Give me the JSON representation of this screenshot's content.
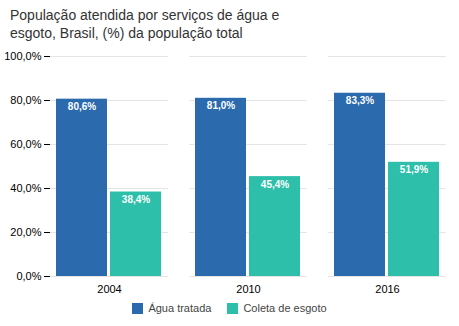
{
  "chart_data": {
    "type": "bar",
    "title": "População atendida por serviços de água e\nesgoto, Brasil, (%) da população total",
    "categories": [
      "2004",
      "2010",
      "2016"
    ],
    "series": [
      {
        "name": "Água tratada",
        "color": "#2a6aad",
        "values": [
          80.6,
          81.0,
          83.3
        ],
        "value_labels": [
          "80,6%",
          "81,0%",
          "83,3%"
        ]
      },
      {
        "name": "Coleta de esgoto",
        "color": "#2dbfaa",
        "values": [
          38.4,
          45.4,
          51.9
        ],
        "value_labels": [
          "38,4%",
          "45,4%",
          "51,9%"
        ]
      }
    ],
    "ylim": [
      0,
      100
    ],
    "yticks": [
      {
        "value": 0,
        "label": "0,0%"
      },
      {
        "value": 20,
        "label": "20,0%"
      },
      {
        "value": 40,
        "label": "40,0%"
      },
      {
        "value": 60,
        "label": "60,0%"
      },
      {
        "value": 80,
        "label": "80,0%"
      },
      {
        "value": 100,
        "label": "100,0%"
      }
    ],
    "grid": true,
    "data_labels": true,
    "legend": "bottom"
  }
}
